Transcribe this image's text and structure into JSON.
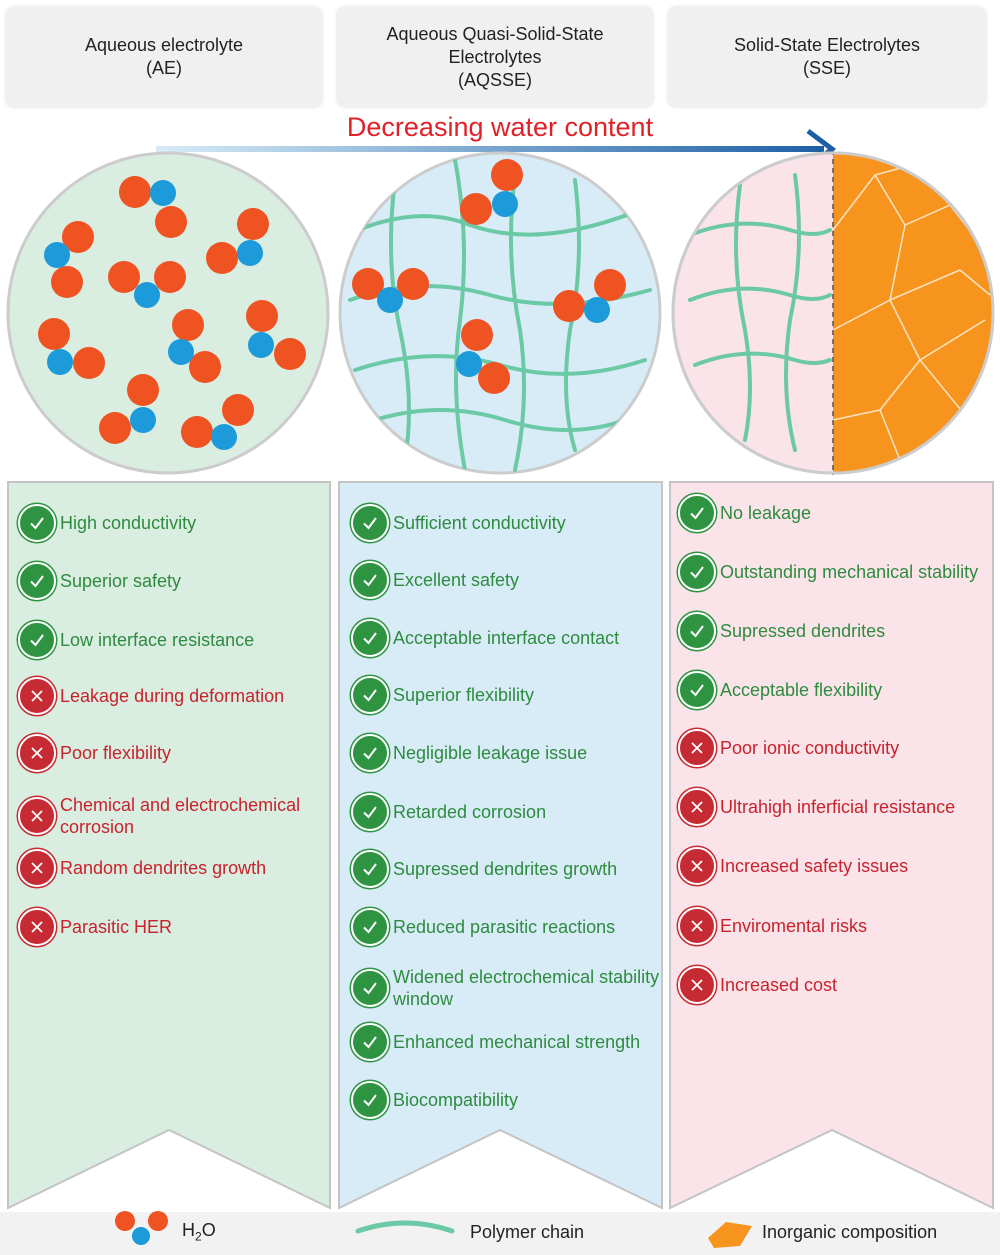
{
  "headers": [
    {
      "lines": [
        "Aqueous electrolyte",
        "(AE)"
      ]
    },
    {
      "lines": [
        "Aqueous Quasi-Solid-State",
        "Electrolytes",
        "(AQSSE)"
      ]
    },
    {
      "lines": [
        "Solid-State Electrolytes",
        "(SSE)"
      ]
    }
  ],
  "arrow_label": "Decreasing water content",
  "colors": {
    "oxygen": "#ef5322",
    "hydrogen": "#1d9ad9",
    "polymer": "#6cc9a6",
    "inorganic": "#f7941d",
    "pro": "#2e9442",
    "con": "#c62a32",
    "arrow_title": "#e02128",
    "ae_bg": "#d9ede1",
    "aqsse_bg": "#d7ecf7",
    "sse_bg": "#fbe3ea"
  },
  "columns": [
    {
      "key": "ae",
      "items": [
        {
          "status": "pro",
          "text": "High conductivity"
        },
        {
          "status": "pro",
          "text": "Superior safety"
        },
        {
          "status": "pro",
          "text": "Low interface resistance"
        },
        {
          "status": "con",
          "text": "Leakage during deformation"
        },
        {
          "status": "con",
          "text": "Poor flexibility"
        },
        {
          "status": "con",
          "text": "Chemical and electrochemical corrosion"
        },
        {
          "status": "con",
          "text": "Random dendrites growth"
        },
        {
          "status": "con",
          "text": "Parasitic HER"
        }
      ]
    },
    {
      "key": "aqsse",
      "items": [
        {
          "status": "pro",
          "text": "Sufficient conductivity"
        },
        {
          "status": "pro",
          "text": "Excellent safety"
        },
        {
          "status": "pro",
          "text": "Acceptable interface contact"
        },
        {
          "status": "pro",
          "text": "Superior flexibility"
        },
        {
          "status": "pro",
          "text": "Negligible leakage issue"
        },
        {
          "status": "pro",
          "text": "Retarded corrosion"
        },
        {
          "status": "pro",
          "text": "Supressed dendrites growth"
        },
        {
          "status": "pro",
          "text": "Reduced parasitic reactions"
        },
        {
          "status": "pro",
          "text": "Widened electrochemical stability window"
        },
        {
          "status": "pro",
          "text": "Enhanced mechanical strength"
        },
        {
          "status": "pro",
          "text": "Biocompatibility"
        }
      ]
    },
    {
      "key": "sse",
      "items": [
        {
          "status": "pro",
          "text": "No leakage"
        },
        {
          "status": "pro",
          "text": "Outstanding mechanical stability"
        },
        {
          "status": "pro",
          "text": "Supressed dendrites"
        },
        {
          "status": "pro",
          "text": "Acceptable flexibility"
        },
        {
          "status": "con",
          "text": "Poor ionic conductivity"
        },
        {
          "status": "con",
          "text": "Ultrahigh inferficial resistance"
        },
        {
          "status": "con",
          "text": "Increased safety issues"
        },
        {
          "status": "con",
          "text": "Enviromental risks"
        },
        {
          "status": "con",
          "text": "Increased cost"
        }
      ]
    }
  ],
  "legend": {
    "h2o_main": "H",
    "h2o_sub": "2",
    "h2o_end": "O",
    "polymer": "Polymer chain",
    "inorganic": "Inorganic composition"
  }
}
